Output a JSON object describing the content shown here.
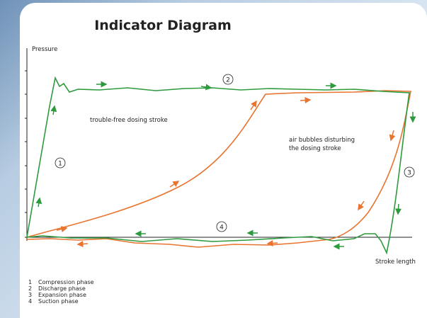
{
  "title": "Indicator Diagram",
  "axes": {
    "y_label": "Pressure",
    "x_label": "Stroke length"
  },
  "annotations": {
    "trouble_free": "trouble-free dosing stroke",
    "air_bubbles": [
      "air bubbles disturbing",
      "the dosing stroke"
    ]
  },
  "phase_markers": [
    "1",
    "2",
    "3",
    "4"
  ],
  "legend": [
    {
      "number": "1",
      "label": "Compression phase"
    },
    {
      "number": "2",
      "label": "Discharge phase"
    },
    {
      "number": "3",
      "label": "Expansion phase"
    },
    {
      "number": "4",
      "label": "Suction phase"
    }
  ]
}
